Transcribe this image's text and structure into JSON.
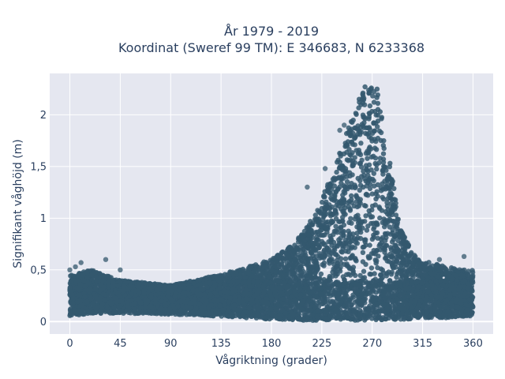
{
  "chart_data": {
    "type": "scatter",
    "title_line1": "År 1979 - 2019",
    "title_line2": "Koordinat (Sweref 99 TM): E 346683, N 6233368",
    "xlabel": "Vågriktning (grader)",
    "ylabel": "Signifikant våghöjd (m)",
    "xlim": [
      -18,
      378
    ],
    "ylim": [
      -0.12,
      2.4
    ],
    "xticks": [
      0,
      45,
      90,
      135,
      180,
      225,
      270,
      315,
      360
    ],
    "yticks": [
      0,
      0.5,
      1,
      1.5,
      2
    ],
    "ytick_labels": [
      "0",
      "0,5",
      "1",
      "1,5",
      "2"
    ],
    "grid": true,
    "colors": {
      "marker": "#34586e",
      "plot_bg": "#e5e7f0",
      "grid": "#ffffff",
      "text": "#2a3f5f"
    },
    "envelope": {
      "x": [
        0,
        20,
        45,
        90,
        120,
        150,
        180,
        200,
        220,
        240,
        255,
        265,
        270,
        275,
        285,
        295,
        310,
        330,
        350,
        360
      ],
      "y_low": [
        0.05,
        0.08,
        0.08,
        0.07,
        0.06,
        0.04,
        0.02,
        0.01,
        0.01,
        0.02,
        0.01,
        0.01,
        0.02,
        0.01,
        0.02,
        0.02,
        0.03,
        0.03,
        0.05,
        0.05
      ],
      "y_high": [
        0.45,
        0.5,
        0.4,
        0.35,
        0.42,
        0.5,
        0.6,
        0.75,
        1.05,
        1.6,
        2.1,
        2.3,
        2.32,
        2.25,
        1.6,
        0.9,
        0.6,
        0.55,
        0.5,
        0.5
      ]
    },
    "outliers": [
      {
        "x": 0,
        "y": 0.5
      },
      {
        "x": 5,
        "y": 0.53
      },
      {
        "x": 10,
        "y": 0.57
      },
      {
        "x": 32,
        "y": 0.6
      },
      {
        "x": 45,
        "y": 0.5
      },
      {
        "x": 330,
        "y": 0.6
      },
      {
        "x": 352,
        "y": 0.63
      },
      {
        "x": 228,
        "y": 1.48
      },
      {
        "x": 241,
        "y": 1.85
      },
      {
        "x": 245,
        "y": 1.9
      },
      {
        "x": 212,
        "y": 1.3
      }
    ]
  }
}
